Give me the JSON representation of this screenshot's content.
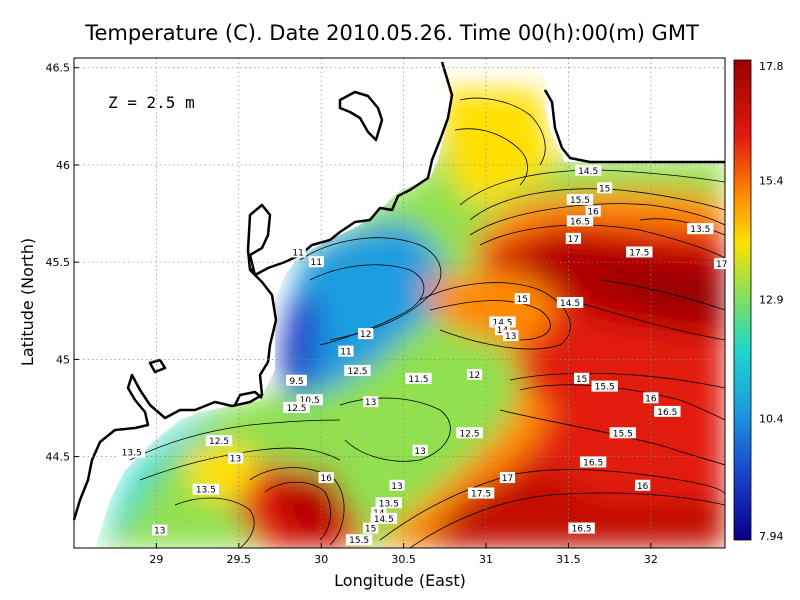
{
  "chart_data": {
    "type": "heatmap",
    "title": "Temperature (C). Date 2010.05.26. Time 00(h):00(m) GMT",
    "annotation": "Z = 2.5 m",
    "xlabel": "Longitude (East)",
    "ylabel": "Latitude (North)",
    "xlim": [
      28.5,
      32.45
    ],
    "ylim": [
      44.03,
      46.55
    ],
    "xticks": [
      "29",
      "29.5",
      "30",
      "30.5",
      "31",
      "31.5",
      "32"
    ],
    "xtick_values": [
      29,
      29.5,
      30,
      30.5,
      31,
      31.5,
      32
    ],
    "yticks": [
      "44.5",
      "45",
      "45.5",
      "46",
      "46.5"
    ],
    "ytick_values": [
      44.5,
      45,
      45.5,
      46,
      46.5
    ],
    "grid": "dotted",
    "colorbar": {
      "ticks": [
        "17.8",
        "15.4",
        "12.9",
        "10.4",
        "7.94"
      ],
      "values": [
        17.8,
        15.4,
        12.9,
        10.4,
        7.94
      ],
      "colors": [
        "#9a0000",
        "#e21a10",
        "#ff8a00",
        "#ffe000",
        "#90e050",
        "#20d8c8",
        "#1a9de0",
        "#1a3ec8",
        "#080087"
      ],
      "min": 7.94,
      "max": 17.8
    },
    "contour_labels": [
      {
        "text": "14.5",
        "lon": 31.62,
        "lat": 45.97
      },
      {
        "text": "15",
        "lon": 31.72,
        "lat": 45.88
      },
      {
        "text": "15.5",
        "lon": 31.57,
        "lat": 45.82
      },
      {
        "text": "16",
        "lon": 31.65,
        "lat": 45.76
      },
      {
        "text": "16.5",
        "lon": 31.57,
        "lat": 45.71
      },
      {
        "text": "17",
        "lon": 31.53,
        "lat": 45.62
      },
      {
        "text": "17.5",
        "lon": 31.93,
        "lat": 45.55
      },
      {
        "text": "17",
        "lon": 32.43,
        "lat": 45.49
      },
      {
        "text": "13.5",
        "lon": 32.3,
        "lat": 45.67
      },
      {
        "text": "11",
        "lon": 29.86,
        "lat": 45.55
      },
      {
        "text": "11",
        "lon": 29.97,
        "lat": 45.5
      },
      {
        "text": "12",
        "lon": 30.27,
        "lat": 45.13
      },
      {
        "text": "11",
        "lon": 30.15,
        "lat": 45.04
      },
      {
        "text": "15",
        "lon": 31.22,
        "lat": 45.31
      },
      {
        "text": "14.5",
        "lon": 31.51,
        "lat": 45.29
      },
      {
        "text": "14.5",
        "lon": 31.1,
        "lat": 45.19
      },
      {
        "text": "14",
        "lon": 31.1,
        "lat": 45.15
      },
      {
        "text": "13",
        "lon": 31.15,
        "lat": 45.12
      },
      {
        "text": "12.5",
        "lon": 30.22,
        "lat": 44.94
      },
      {
        "text": "11.5",
        "lon": 30.59,
        "lat": 44.9
      },
      {
        "text": "12",
        "lon": 30.93,
        "lat": 44.92
      },
      {
        "text": "9.5",
        "lon": 29.85,
        "lat": 44.89
      },
      {
        "text": "10.5",
        "lon": 29.93,
        "lat": 44.79
      },
      {
        "text": "12.5",
        "lon": 29.85,
        "lat": 44.75
      },
      {
        "text": "13",
        "lon": 30.3,
        "lat": 44.78
      },
      {
        "text": "15",
        "lon": 31.58,
        "lat": 44.9
      },
      {
        "text": "15.5",
        "lon": 31.72,
        "lat": 44.86
      },
      {
        "text": "16",
        "lon": 32.0,
        "lat": 44.8
      },
      {
        "text": "16.5",
        "lon": 32.1,
        "lat": 44.73
      },
      {
        "text": "15.5",
        "lon": 31.83,
        "lat": 44.62
      },
      {
        "text": "12.5",
        "lon": 30.9,
        "lat": 44.62
      },
      {
        "text": "12.5",
        "lon": 29.38,
        "lat": 44.58
      },
      {
        "text": "13.5",
        "lon": 28.85,
        "lat": 44.52
      },
      {
        "text": "13",
        "lon": 29.48,
        "lat": 44.49
      },
      {
        "text": "13",
        "lon": 30.6,
        "lat": 44.53
      },
      {
        "text": "16.5",
        "lon": 31.65,
        "lat": 44.47
      },
      {
        "text": "16",
        "lon": 30.03,
        "lat": 44.39
      },
      {
        "text": "17",
        "lon": 31.13,
        "lat": 44.39
      },
      {
        "text": "13",
        "lon": 30.46,
        "lat": 44.35
      },
      {
        "text": "16",
        "lon": 31.95,
        "lat": 44.35
      },
      {
        "text": "13.5",
        "lon": 29.3,
        "lat": 44.33
      },
      {
        "text": "17.5",
        "lon": 30.97,
        "lat": 44.31
      },
      {
        "text": "13.5",
        "lon": 30.41,
        "lat": 44.26
      },
      {
        "text": "14",
        "lon": 30.35,
        "lat": 44.21
      },
      {
        "text": "14.5",
        "lon": 30.38,
        "lat": 44.18
      },
      {
        "text": "15",
        "lon": 30.3,
        "lat": 44.13
      },
      {
        "text": "15.5",
        "lon": 30.23,
        "lat": 44.07
      },
      {
        "text": "16.5",
        "lon": 31.58,
        "lat": 44.13
      },
      {
        "text": "13",
        "lon": 29.02,
        "lat": 44.12
      }
    ]
  }
}
